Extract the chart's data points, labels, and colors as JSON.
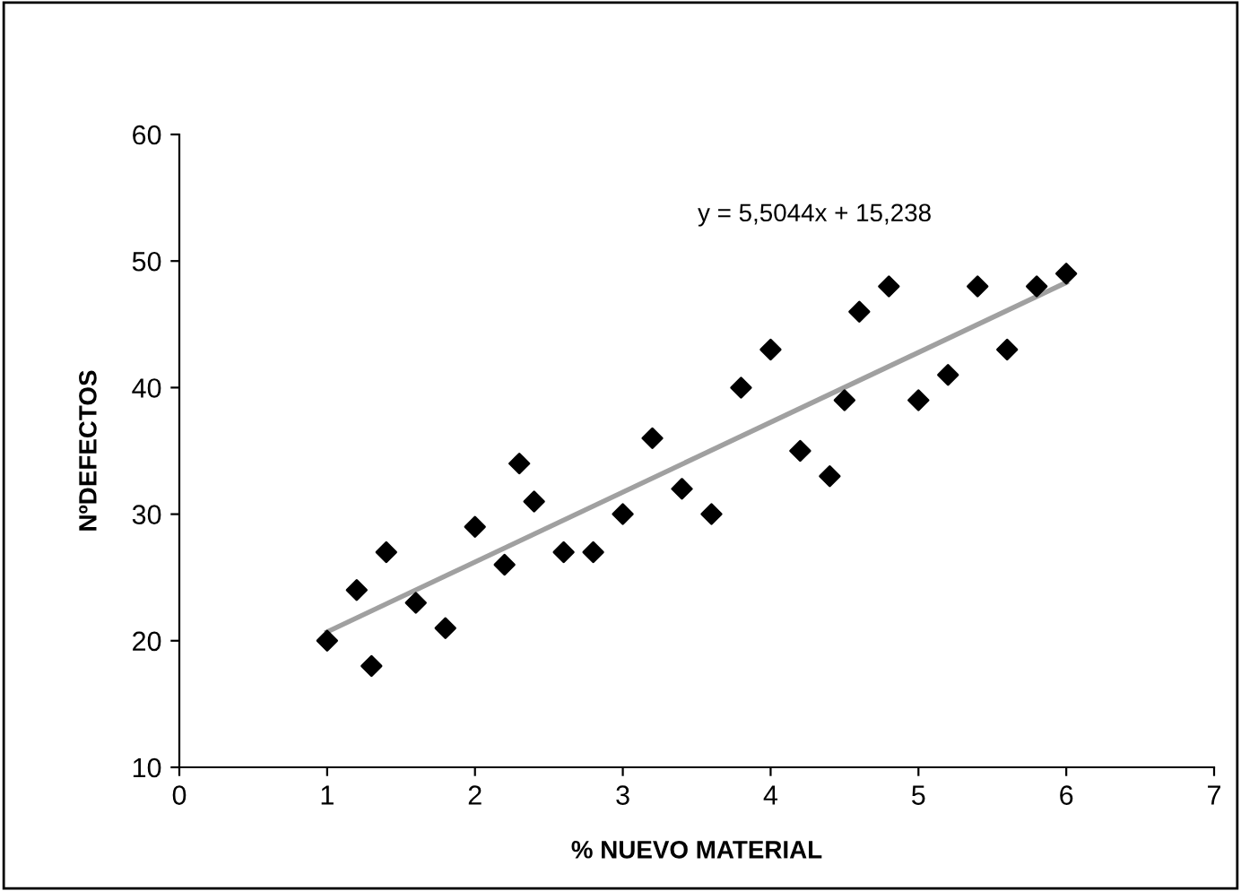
{
  "chart_data": {
    "type": "scatter",
    "xlabel": "% NUEVO MATERIAL",
    "ylabel": "NºDEFECTOS",
    "annotations": [
      "y = 5,5044x + 15,238"
    ],
    "series": [
      {
        "color": "#000000",
        "marker": "diamond",
        "x": [
          1,
          1.2,
          1.3,
          1.4,
          1.6,
          1.8,
          2,
          2.2,
          2.3,
          2.4,
          2.6,
          2.8,
          3,
          3.2,
          3.4,
          3.6,
          3.8,
          4,
          4.2,
          4.4,
          4.5,
          4.6,
          4.8,
          5,
          5.2,
          5.4,
          5.6,
          5.8,
          6
        ],
        "values": [
          20,
          24,
          18,
          27,
          23,
          21,
          29,
          26,
          34,
          31,
          27,
          27,
          30,
          36,
          32,
          30,
          40,
          43,
          35,
          33,
          39,
          46,
          48,
          39,
          41,
          48,
          43,
          48,
          49
        ]
      },
      {
        "type": "line",
        "color": "#a0a0a0",
        "marker": "none",
        "x": [
          1,
          6
        ],
        "values": [
          20.7,
          48.3
        ]
      }
    ],
    "xlim": [
      0,
      7
    ],
    "ylim": [
      10,
      60
    ],
    "xticks": [
      0,
      1,
      2,
      3,
      4,
      5,
      6,
      7
    ],
    "yticks": [
      10,
      20,
      30,
      40,
      50,
      60
    ],
    "grid": false,
    "legend": false
  }
}
